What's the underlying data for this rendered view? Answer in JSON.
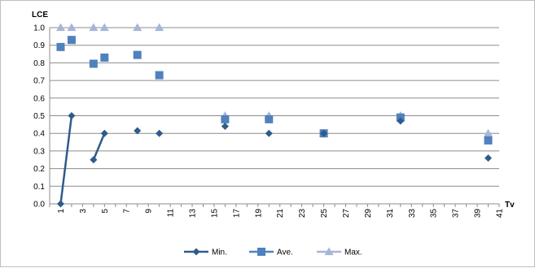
{
  "chart_data": {
    "type": "scatter",
    "ylabel": "LCE",
    "xlabel": "Tv",
    "ylim": [
      0,
      1.0
    ],
    "yticks": [
      "0.0",
      "0.1",
      "0.2",
      "0.3",
      "0.4",
      "0.5",
      "0.6",
      "0.7",
      "0.8",
      "0.9",
      "1.0"
    ],
    "xlim": [
      0,
      41
    ],
    "xticks": [
      "1",
      "3",
      "5",
      "7",
      "9",
      "11",
      "13",
      "15",
      "17",
      "19",
      "21",
      "23",
      "25",
      "27",
      "29",
      "31",
      "33",
      "35",
      "37",
      "39",
      "41"
    ],
    "grid": true,
    "legend_position": "bottom",
    "series": [
      {
        "name": "Min.",
        "marker": "diamond",
        "color": "#2e5c8a",
        "x": [
          1,
          2,
          4,
          5,
          8,
          10,
          16,
          20,
          25,
          32,
          40
        ],
        "y": [
          0.0,
          0.5,
          0.25,
          0.4,
          0.415,
          0.4,
          0.44,
          0.4,
          0.4,
          0.47,
          0.26
        ],
        "line_segments": [
          [
            0,
            1
          ],
          [
            2,
            3
          ]
        ]
      },
      {
        "name": "Ave.",
        "marker": "square",
        "color": "#4f81bd",
        "x": [
          1,
          2,
          4,
          5,
          8,
          10,
          16,
          20,
          25,
          32,
          40
        ],
        "y": [
          0.89,
          0.93,
          0.795,
          0.83,
          0.845,
          0.73,
          0.48,
          0.48,
          0.4,
          0.49,
          0.36
        ]
      },
      {
        "name": "Max.",
        "marker": "triangle",
        "color": "#a5b6d9",
        "x": [
          1,
          2,
          4,
          5,
          8,
          10,
          16,
          20,
          25,
          32,
          40
        ],
        "y": [
          1.0,
          1.0,
          1.0,
          1.0,
          1.0,
          1.0,
          0.5,
          0.5,
          0.4,
          0.5,
          0.4
        ]
      }
    ]
  }
}
